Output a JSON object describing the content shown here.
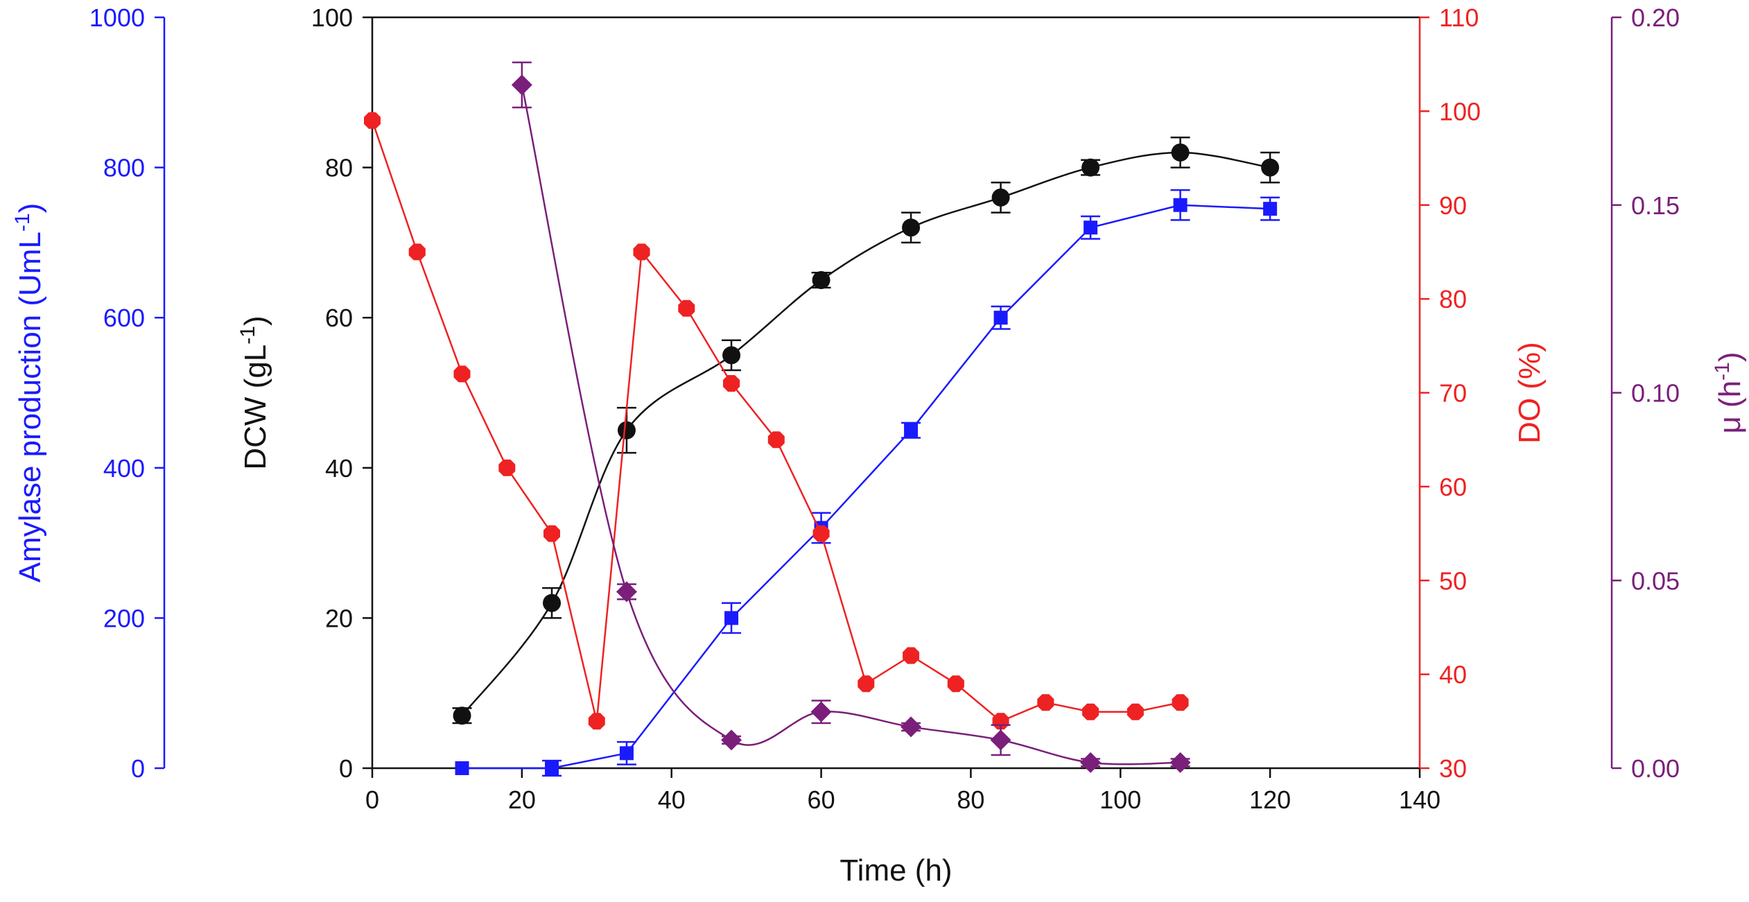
{
  "chart_data": {
    "type": "line",
    "xlabel": "Time (h)",
    "xlim": [
      0,
      140
    ],
    "x_ticks": [
      "0",
      "20",
      "40",
      "60",
      "80",
      "100",
      "120",
      "140"
    ],
    "axes": {
      "amylase": {
        "label": "Amylase production (UmL",
        "label_sup": "-1",
        "label_end": ")",
        "color": "#1a1aff",
        "ylim": [
          0,
          1000
        ],
        "ticks": [
          "0",
          "200",
          "400",
          "600",
          "800",
          "1000"
        ]
      },
      "dcw": {
        "label": "DCW (gL",
        "label_sup": "-1",
        "label_end": ")",
        "color": "#111111",
        "ylim": [
          0,
          100
        ],
        "ticks": [
          "0",
          "20",
          "40",
          "60",
          "80",
          "100"
        ]
      },
      "do": {
        "label": "DO (%)",
        "label_sup": "",
        "label_end": "",
        "color": "#ee2222",
        "ylim": [
          30,
          110
        ],
        "ticks": [
          "30",
          "40",
          "50",
          "60",
          "70",
          "80",
          "90",
          "100",
          "110"
        ]
      },
      "mu": {
        "label": "μ (h",
        "label_sup": "-1",
        "label_end": ")",
        "color": "#7a1f7a",
        "ylim": [
          0,
          0.2
        ],
        "ticks": [
          "0.00",
          "0.05",
          "0.10",
          "0.15",
          "0.20"
        ]
      }
    },
    "series": [
      {
        "name": "DCW",
        "axis": "dcw",
        "marker": "circle",
        "smooth": true,
        "color": "#111111",
        "x": [
          12,
          24,
          34,
          48,
          60,
          72,
          84,
          96,
          108,
          120
        ],
        "y": [
          7,
          22,
          45,
          55,
          65,
          72,
          76,
          80,
          82,
          80
        ],
        "err": [
          1,
          2,
          3,
          2,
          1,
          2,
          2,
          1,
          2,
          2
        ]
      },
      {
        "name": "Amylase production",
        "axis": "amylase",
        "marker": "square",
        "smooth": false,
        "color": "#1a1aff",
        "x": [
          12,
          24,
          34,
          48,
          60,
          72,
          84,
          96,
          108,
          120
        ],
        "y": [
          0,
          0,
          20,
          200,
          320,
          450,
          600,
          720,
          750,
          745
        ],
        "err": [
          0,
          10,
          15,
          20,
          20,
          10,
          15,
          15,
          20,
          15
        ]
      },
      {
        "name": "DO",
        "axis": "do",
        "marker": "octagon",
        "smooth": false,
        "color": "#ee2222",
        "x": [
          0,
          6,
          12,
          18,
          24,
          30,
          36,
          42,
          48,
          54,
          60,
          66,
          72,
          78,
          84,
          90,
          96,
          102,
          108
        ],
        "y": [
          99,
          85,
          72,
          62,
          55,
          35,
          85,
          79,
          71,
          65,
          55,
          39,
          42,
          39,
          35,
          37,
          36,
          36,
          37
        ],
        "err": []
      },
      {
        "name": "μ",
        "axis": "mu",
        "marker": "diamond",
        "smooth": true,
        "color": "#7a1f7a",
        "x": [
          20,
          34,
          48,
          60,
          72,
          84,
          96,
          108
        ],
        "y": [
          0.182,
          0.047,
          0.0075,
          0.015,
          0.011,
          0.0075,
          0.0015,
          0.0015
        ],
        "err": [
          0.006,
          0.002,
          0.001,
          0.003,
          0.001,
          0.004,
          0.001,
          0.001
        ]
      }
    ]
  }
}
